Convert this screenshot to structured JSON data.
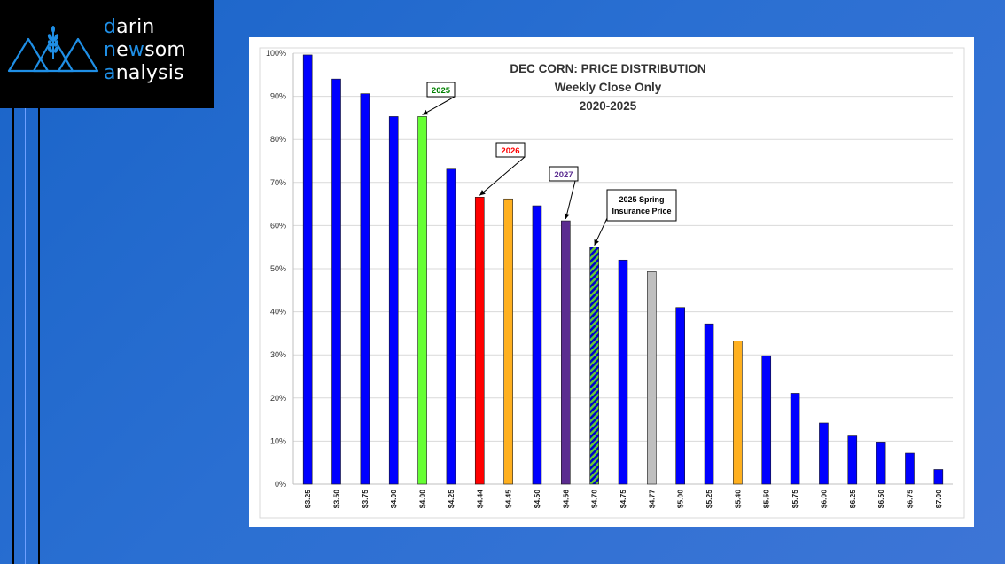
{
  "logo": {
    "line1": "darin",
    "line2": "newsom",
    "line3": "analysis",
    "accent_color": "#1f8fe6",
    "icon": "mountain-wheat-icon"
  },
  "chart_data": {
    "type": "bar",
    "title": "DEC CORN: PRICE DISTRIBUTION",
    "subtitle": "Weekly Close Only",
    "period": "2020-2025",
    "xlabel": "",
    "ylabel": "",
    "ylim": [
      0,
      100
    ],
    "y_ticks": [
      "0%",
      "10%",
      "20%",
      "30%",
      "40%",
      "50%",
      "60%",
      "70%",
      "80%",
      "90%",
      "100%"
    ],
    "categories": [
      "$3.25",
      "$3.50",
      "$3.75",
      "$4.00",
      "$4.00",
      "$4.25",
      "$4.44",
      "$4.45",
      "$4.50",
      "$4.56",
      "$4.70",
      "$4.75",
      "$4.77",
      "$5.00",
      "$5.25",
      "$5.40",
      "$5.50",
      "$5.75",
      "$6.00",
      "$6.25",
      "$6.50",
      "$6.75",
      "$7.00"
    ],
    "values": [
      99.6,
      94,
      90.6,
      85.3,
      85.3,
      73.1,
      66.6,
      66.2,
      64.6,
      61.1,
      55,
      52,
      49.3,
      41,
      37.2,
      33.2,
      29.8,
      21.1,
      14.2,
      11.2,
      9.8,
      7.2,
      3.4
    ],
    "bar_colors": [
      "#0000ff",
      "#0000ff",
      "#0000ff",
      "#0000ff",
      "#66ff33",
      "#0000ff",
      "#ff0000",
      "#ffb01f",
      "#0000ff",
      "#5b2c90",
      "hatch",
      "#0000ff",
      "#bfbfbf",
      "#0000ff",
      "#0000ff",
      "#ffb01f",
      "#0000ff",
      "#0000ff",
      "#0000ff",
      "#0000ff",
      "#0000ff",
      "#0000ff",
      "#0000ff"
    ],
    "gridlines": true,
    "annotations": [
      {
        "text": "2025",
        "bar_index": 4,
        "color": "#008000"
      },
      {
        "text": "2026",
        "bar_index": 6,
        "color": "#ff0000"
      },
      {
        "text": "2027",
        "bar_index": 9,
        "color": "#5b2c90"
      },
      {
        "text": "2025 Spring",
        "text2": "Insurance Price",
        "bar_index": 10,
        "color": "#000000"
      }
    ]
  }
}
